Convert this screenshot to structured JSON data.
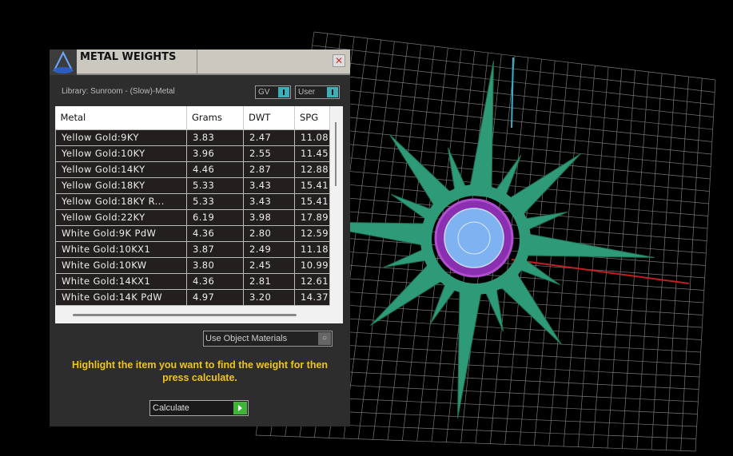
{
  "panel": {
    "title": "METAL WEIGHTS",
    "close_icon": "close-x",
    "library": "Library: Sunroom - (Slow)-Metal",
    "toggle_gv": "GV",
    "toggle_user": "User",
    "columns": [
      "Metal",
      "Grams",
      "DWT",
      "SPG"
    ],
    "rows": [
      [
        "Yellow Gold:9KY",
        "3.83",
        "2.47",
        "11.08"
      ],
      [
        "Yellow Gold:10KY",
        "3.96",
        "2.55",
        "11.45"
      ],
      [
        "Yellow Gold:14KY",
        "4.46",
        "2.87",
        "12.88"
      ],
      [
        "Yellow Gold:18KY",
        "5.33",
        "3.43",
        "15.41"
      ],
      [
        "Yellow Gold:18KY R...",
        "5.33",
        "3.43",
        "15.41"
      ],
      [
        "Yellow Gold:22KY",
        "6.19",
        "3.98",
        "17.89"
      ],
      [
        "White Gold:9K PdW",
        "4.36",
        "2.80",
        "12.59"
      ],
      [
        "White Gold:10KX1",
        "3.87",
        "2.49",
        "11.18"
      ],
      [
        "White Gold:10KW",
        "3.80",
        "2.45",
        "10.99"
      ],
      [
        "White Gold:14KX1",
        "4.36",
        "2.81",
        "12.61"
      ],
      [
        "White Gold:14K PdW",
        "4.97",
        "3.20",
        "14.37"
      ]
    ],
    "use_object_materials": "Use Object Materials",
    "hint": "Highlight the item you want to find the weight for then press calculate.",
    "calculate": "Calculate"
  },
  "colors": {
    "accent_toggle": "#3bb0b8",
    "hint": "#f0c419",
    "go": "#43b23b",
    "ring": "#2e9a78",
    "setting": "#8a2fb0",
    "stone": "#7fb2f0"
  }
}
